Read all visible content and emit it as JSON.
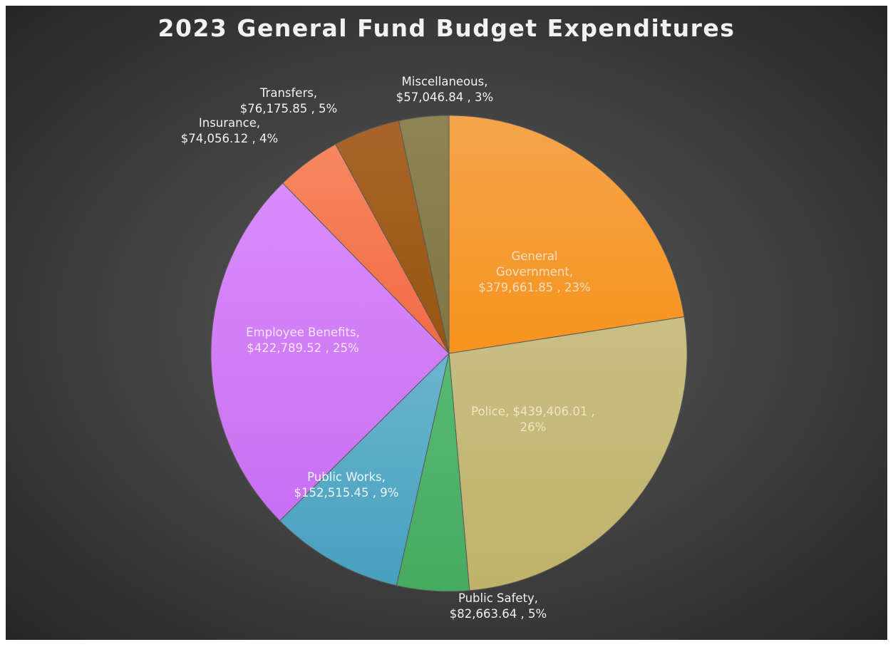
{
  "chart_data": {
    "type": "pie",
    "title": "2023 General Fund Budget Expenditures",
    "slices": [
      {
        "name": "General Government",
        "value": 379661.85,
        "percent": "23%",
        "label_lines": [
          "General",
          "Government,",
          "$379,661.85 , 23%"
        ],
        "color": "#f7941d",
        "color_light": "#f4a44c",
        "label_color": "#f4dcc0"
      },
      {
        "name": "Police",
        "value": 439406.01,
        "percent": "26%",
        "label_lines": [
          "Police, $439,406.01 ,",
          "26%"
        ],
        "color": "#bfb26a",
        "color_light": "#c9bf84",
        "label_color": "#ece6c6"
      },
      {
        "name": "Public Safety",
        "value": 82663.64,
        "percent": "5%",
        "label_lines": [
          "Public Safety,",
          "$82,663.64 , 5%"
        ],
        "color": "#45ab5f",
        "color_light": "#58ba72",
        "label_color": "#f2f2f2"
      },
      {
        "name": "Public Works",
        "value": 152515.45,
        "percent": "9%",
        "label_lines": [
          "Public Works,",
          "$152,515.45 , 9%"
        ],
        "color": "#46a0bd",
        "color_light": "#6bb5cf",
        "label_color": "#eef7fa"
      },
      {
        "name": "Employee Benefits",
        "value": 422789.52,
        "percent": "25%",
        "label_lines": [
          "Employee Benefits,",
          "$422,789.52 , 25%"
        ],
        "color": "#c86ff2",
        "color_light": "#d98cfb",
        "label_color": "#f6e6fd"
      },
      {
        "name": "Insurance",
        "value": 74056.12,
        "percent": "4%",
        "label_lines": [
          "Insurance,",
          "$74,056.12 , 4%"
        ],
        "color": "#f26a45",
        "color_light": "#f7875f",
        "label_color": "#f2f2f2"
      },
      {
        "name": "Transfers",
        "value": 76175.85,
        "percent": "5%",
        "label_lines": [
          "Transfers,",
          "$76,175.85 , 5%"
        ],
        "color": "#96550f",
        "color_light": "#a8652a",
        "label_color": "#f2f2f2"
      },
      {
        "name": "Miscellaneous",
        "value": 57046.84,
        "percent": "3%",
        "label_lines": [
          "Miscellaneous,",
          "$57,046.84 , 3%"
        ],
        "color": "#7f7545",
        "color_light": "#8f8553",
        "label_color": "#f2f2f2"
      }
    ]
  }
}
